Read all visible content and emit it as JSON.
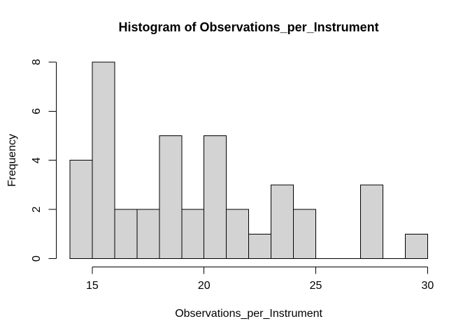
{
  "chart_data": {
    "type": "bar",
    "subtype": "histogram",
    "title": "Histogram of Observations_per_Instrument",
    "xlabel": "Observations_per_Instrument",
    "ylabel": "Frequency",
    "breaks": [
      14,
      15,
      16,
      17,
      18,
      19,
      20,
      21,
      22,
      23,
      24,
      25,
      26,
      27,
      28,
      29,
      30
    ],
    "counts": [
      4,
      8,
      2,
      2,
      5,
      2,
      5,
      2,
      1,
      3,
      2,
      0,
      0,
      3,
      0,
      1
    ],
    "x_ticks": [
      15,
      20,
      25,
      30
    ],
    "y_ticks": [
      0,
      2,
      4,
      6,
      8
    ],
    "xlim": [
      14,
      30
    ],
    "ylim": [
      0,
      8
    ],
    "grid": false,
    "legend": false,
    "bar_fill": "#d3d3d3",
    "bar_stroke": "#000000",
    "axis_color": "#000000",
    "text_color": "#000000",
    "background": "#ffffff"
  }
}
